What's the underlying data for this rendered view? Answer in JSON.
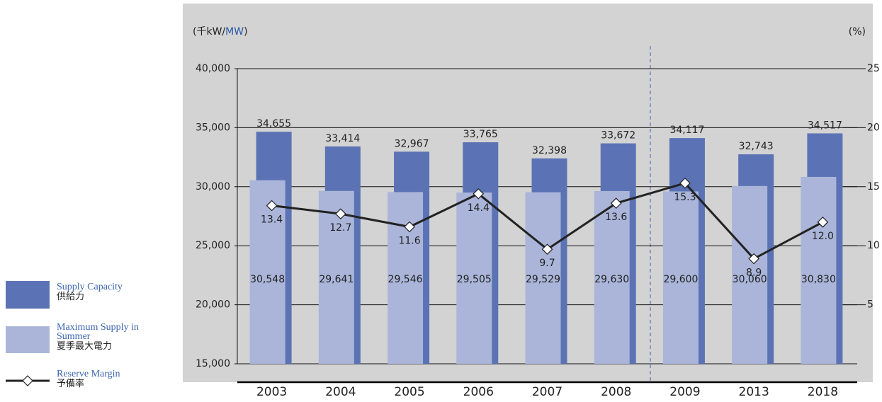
{
  "chart_data": {
    "type": "bar",
    "y_label_parts": [
      "(千kW/",
      "MW",
      ")"
    ],
    "y2_label": "(%)",
    "categories": [
      "2003",
      "2004",
      "2005",
      "2006",
      "2007",
      "2008",
      "2009",
      "2013",
      "2018"
    ],
    "series": [
      {
        "name": "Supply Capacity",
        "name_ja": "供給力",
        "color": "#5b73b5",
        "values": [
          34655,
          33414,
          32967,
          33765,
          32398,
          33672,
          34117,
          32743,
          34517
        ],
        "value_labels": [
          "34,655",
          "33,414",
          "32,967",
          "33,765",
          "32,398",
          "33,672",
          "34,117",
          "32,743",
          "34,517"
        ]
      },
      {
        "name": "Maximum Supply in Summer",
        "name_ja": "夏季最大電力",
        "color": "#aab5d9",
        "values": [
          30548,
          29641,
          29546,
          29505,
          29529,
          29630,
          29600,
          30060,
          30830
        ],
        "value_labels": [
          "30,548",
          "29,641",
          "29,546",
          "29,505",
          "29,529",
          "29,630",
          "29,600",
          "30,060",
          "30,830"
        ]
      },
      {
        "name": "Reserve Margin",
        "name_ja": "予備率",
        "color": "#222222",
        "type": "line",
        "axis": "y2",
        "values": [
          13.4,
          12.7,
          11.6,
          14.4,
          9.7,
          13.6,
          15.3,
          8.9,
          12.0
        ],
        "value_labels": [
          "13.4",
          "12.7",
          "11.6",
          "14.4",
          "9.7",
          "13.6",
          "15.3",
          "8.9",
          "12.0"
        ]
      }
    ],
    "ylim": [
      15000,
      40000
    ],
    "yticks": [
      {
        "value": 15000,
        "label": "15,000"
      },
      {
        "value": 20000,
        "label": "20,000"
      },
      {
        "value": 25000,
        "label": "25,000"
      },
      {
        "value": 30000,
        "label": "30,000"
      },
      {
        "value": 35000,
        "label": "35,000"
      },
      {
        "value": 40000,
        "label": "40,000"
      }
    ],
    "y2lim": [
      0,
      25
    ],
    "y2ticks": [
      5,
      10,
      15,
      20,
      25
    ],
    "grid": true
  }
}
